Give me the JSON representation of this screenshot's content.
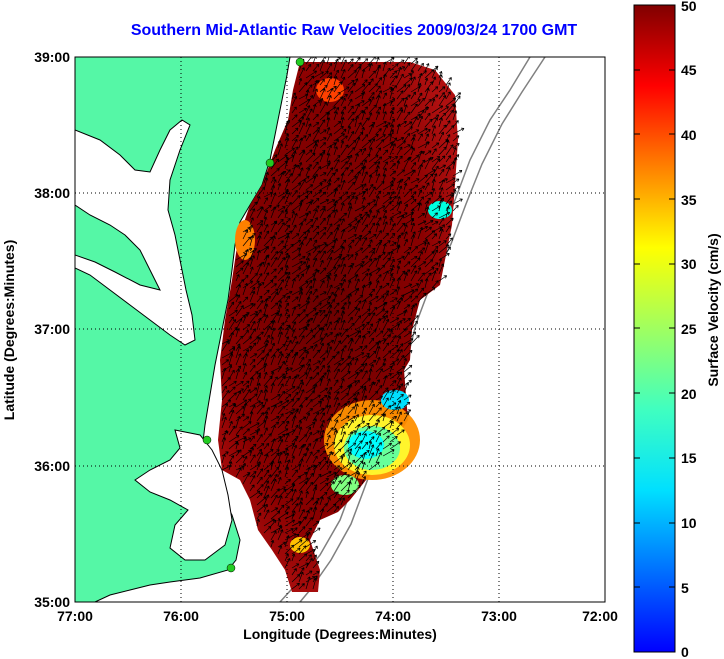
{
  "title": "Southern Mid-Atlantic Raw Velocities 2009/03/24 1700 GMT",
  "map": {
    "x_label": "Longitude (Degrees:Minutes)",
    "y_label": "Latitude (Degrees:Minutes)",
    "x_ticks": [
      "77:00",
      "76:00",
      "75:00",
      "74:00",
      "73:00",
      "72:00"
    ],
    "y_ticks": [
      "39:00",
      "38:00",
      "37:00",
      "36:00",
      "35:00"
    ],
    "lon_range": [
      -77,
      -72
    ],
    "lat_range": [
      35,
      39
    ],
    "grid": "dotted"
  },
  "colorbar": {
    "label": "Surface Velocity (cm/s)",
    "ticks": [
      "50",
      "45",
      "40",
      "35",
      "30",
      "25",
      "20",
      "15",
      "10",
      "5",
      "0"
    ],
    "range": [
      0,
      50
    ],
    "colormap": "jet"
  },
  "colors": {
    "land": "#55f7a6",
    "title": "#0000ff",
    "coastline": "#000000",
    "bathymetry": "#808080",
    "station": "#22cc22",
    "high_velocity": "#800000",
    "low_velocity": "#00ffff"
  }
}
